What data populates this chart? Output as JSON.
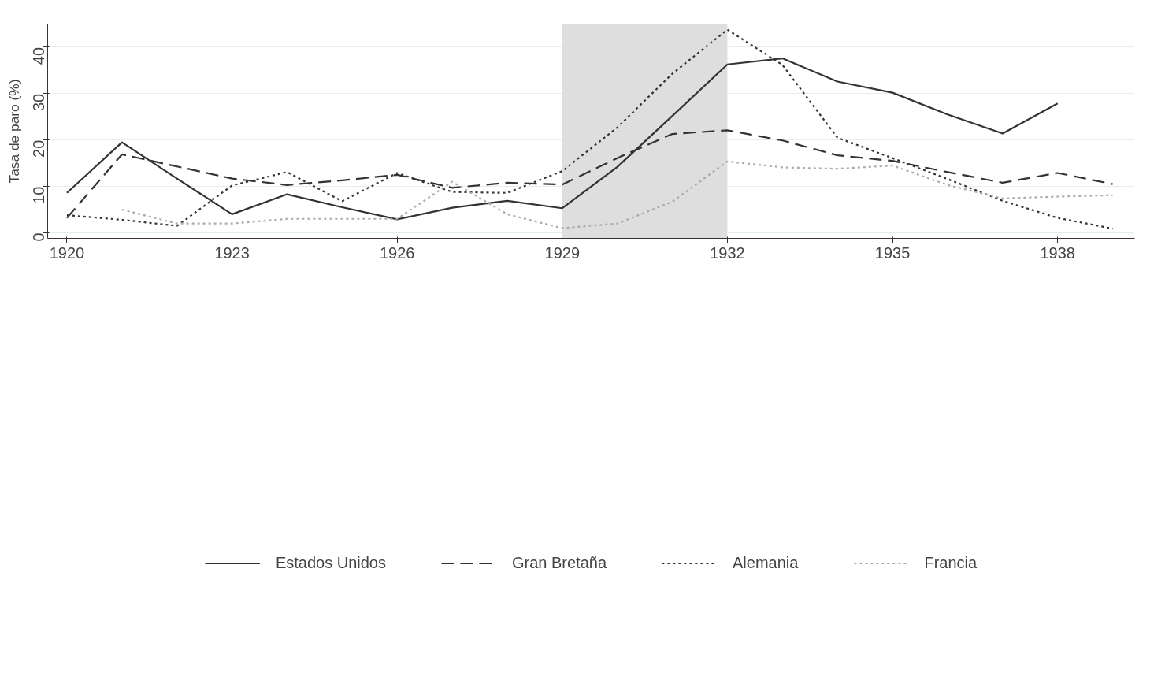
{
  "chart_data": {
    "type": "line",
    "ylabel": "Tasa de paro (%)",
    "x": [
      1920,
      1921,
      1922,
      1923,
      1924,
      1925,
      1926,
      1927,
      1928,
      1929,
      1930,
      1931,
      1932,
      1933,
      1934,
      1935,
      1936,
      1937,
      1938,
      1939
    ],
    "xlim": [
      1919.65,
      1939.4
    ],
    "xticks": [
      1920,
      1923,
      1926,
      1929,
      1932,
      1935,
      1938
    ],
    "ylim": [
      -1.2,
      45
    ],
    "yticks": [
      0,
      10,
      20,
      30,
      40
    ],
    "grid": "y",
    "legend": "bottom",
    "bands": [
      {
        "axis": "x",
        "from": 1929,
        "to": 1932,
        "color": "#dedede"
      }
    ],
    "series": [
      {
        "name": "Estados Unidos",
        "color": "#333333",
        "line_style": "solid",
        "values": [
          8.6,
          19.5,
          11.7,
          4.0,
          8.3,
          5.5,
          2.9,
          5.4,
          6.9,
          5.3,
          14.2,
          25.2,
          36.3,
          37.6,
          32.6,
          30.2,
          25.5,
          21.4,
          27.9,
          null
        ]
      },
      {
        "name": "Gran Bretaña",
        "color": "#333333",
        "line_style": "dashed",
        "values": [
          3.2,
          16.9,
          14.3,
          11.7,
          10.3,
          11.3,
          12.5,
          9.7,
          10.8,
          10.4,
          16.1,
          21.3,
          22.1,
          19.9,
          16.7,
          15.5,
          13.1,
          10.8,
          12.9,
          10.5
        ]
      },
      {
        "name": "Alemania",
        "color": "#333333",
        "line_style": "dotted",
        "values": [
          3.8,
          2.8,
          1.5,
          10.2,
          13.1,
          6.8,
          12.9,
          8.8,
          8.6,
          13.3,
          22.7,
          34.3,
          43.8,
          36.2,
          20.5,
          16.1,
          11.6,
          6.9,
          3.2,
          0.9
        ]
      },
      {
        "name": "Francia",
        "color": "#aaaaaa",
        "line_style": "dotted",
        "values": [
          null,
          5.0,
          2.0,
          2.0,
          3.0,
          3.0,
          3.0,
          11.0,
          4.0,
          1.0,
          2.0,
          6.7,
          15.4,
          14.1,
          13.8,
          14.5,
          10.3,
          7.4,
          7.8,
          8.1
        ]
      }
    ]
  }
}
